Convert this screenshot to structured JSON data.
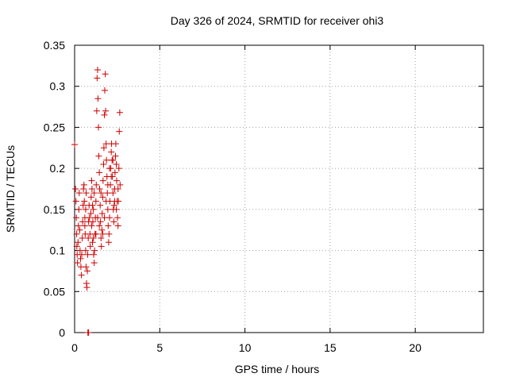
{
  "chart_data": {
    "type": "scatter",
    "title": "Day 326 of 2024, SRMTID for receiver ohi3",
    "xlabel": "GPS time / hours",
    "ylabel": "SRMTID / TECUs",
    "xlim": [
      0,
      24
    ],
    "ylim": [
      0,
      0.35
    ],
    "x_ticks": [
      0,
      5,
      10,
      15,
      20
    ],
    "y_ticks": [
      0,
      0.05,
      0.1,
      0.15,
      0.2,
      0.25,
      0.3,
      0.35
    ],
    "x_tick_labels": [
      "0",
      "5",
      "10",
      "15",
      "20"
    ],
    "y_tick_labels": [
      "0",
      "0.05",
      "0.1",
      "0.15",
      "0.2",
      "0.25",
      "0.3",
      "0.35"
    ],
    "grid": true,
    "marker": "plus",
    "color": "#cc0000",
    "series": [
      {
        "points": [
          [
            0.0,
            0.229
          ],
          [
            0.05,
            0.175
          ],
          [
            0.08,
            0.16
          ],
          [
            0.1,
            0.14
          ],
          [
            0.12,
            0.12
          ],
          [
            0.13,
            0.105
          ],
          [
            0.15,
            0.095
          ],
          [
            0.17,
            0.085
          ],
          [
            0.2,
            0.11
          ],
          [
            0.22,
            0.13
          ],
          [
            0.25,
            0.15
          ],
          [
            0.27,
            0.17
          ],
          [
            0.3,
            0.125
          ],
          [
            0.32,
            0.1
          ],
          [
            0.35,
            0.09
          ],
          [
            0.37,
            0.08
          ],
          [
            0.4,
            0.07
          ],
          [
            0.42,
            0.095
          ],
          [
            0.45,
            0.115
          ],
          [
            0.47,
            0.135
          ],
          [
            0.5,
            0.155
          ],
          [
            0.52,
            0.175
          ],
          [
            0.55,
            0.18
          ],
          [
            0.57,
            0.16
          ],
          [
            0.6,
            0.14
          ],
          [
            0.62,
            0.12
          ],
          [
            0.65,
            0.1
          ],
          [
            0.67,
            0.08
          ],
          [
            0.7,
            0.06
          ],
          [
            0.72,
            0.055
          ],
          [
            0.75,
            0.075
          ],
          [
            0.77,
            0.095
          ],
          [
            0.8,
            0.115
          ],
          [
            0.82,
            0.135
          ],
          [
            0.85,
            0.155
          ],
          [
            0.87,
            0.14
          ],
          [
            0.9,
            0.12
          ],
          [
            0.92,
            0.105
          ],
          [
            0.95,
            0.145
          ],
          [
            0.97,
            0.165
          ],
          [
            1.0,
            0.185
          ],
          [
            1.02,
            0.175
          ],
          [
            1.05,
            0.155
          ],
          [
            1.07,
            0.135
          ],
          [
            1.1,
            0.115
          ],
          [
            1.12,
            0.095
          ],
          [
            1.15,
            0.085
          ],
          [
            1.17,
            0.1
          ],
          [
            1.2,
            0.12
          ],
          [
            1.22,
            0.14
          ],
          [
            1.25,
            0.16
          ],
          [
            1.27,
            0.18
          ],
          [
            1.3,
            0.27
          ],
          [
            1.32,
            0.31
          ],
          [
            1.35,
            0.32
          ],
          [
            1.37,
            0.285
          ],
          [
            1.4,
            0.25
          ],
          [
            1.42,
            0.215
          ],
          [
            1.45,
            0.195
          ],
          [
            1.47,
            0.175
          ],
          [
            1.5,
            0.155
          ],
          [
            1.52,
            0.135
          ],
          [
            1.55,
            0.115
          ],
          [
            1.57,
            0.105
          ],
          [
            1.6,
            0.125
          ],
          [
            1.62,
            0.145
          ],
          [
            1.65,
            0.165
          ],
          [
            1.67,
            0.185
          ],
          [
            1.7,
            0.205
          ],
          [
            1.72,
            0.225
          ],
          [
            1.75,
            0.265
          ],
          [
            1.77,
            0.295
          ],
          [
            1.8,
            0.315
          ],
          [
            1.82,
            0.27
          ],
          [
            1.85,
            0.23
          ],
          [
            1.87,
            0.21
          ],
          [
            1.9,
            0.19
          ],
          [
            1.92,
            0.17
          ],
          [
            1.95,
            0.15
          ],
          [
            1.97,
            0.13
          ],
          [
            2.0,
            0.11
          ],
          [
            2.02,
            0.12
          ],
          [
            2.05,
            0.14
          ],
          [
            2.07,
            0.16
          ],
          [
            2.1,
            0.18
          ],
          [
            2.12,
            0.2
          ],
          [
            2.15,
            0.22
          ],
          [
            2.17,
            0.23
          ],
          [
            2.2,
            0.21
          ],
          [
            2.22,
            0.19
          ],
          [
            2.25,
            0.17
          ],
          [
            2.27,
            0.15
          ],
          [
            2.3,
            0.135
          ],
          [
            2.32,
            0.155
          ],
          [
            2.35,
            0.175
          ],
          [
            2.37,
            0.195
          ],
          [
            2.4,
            0.215
          ],
          [
            2.42,
            0.23
          ],
          [
            2.45,
            0.205
          ],
          [
            2.47,
            0.185
          ],
          [
            2.5,
            0.16
          ],
          [
            2.52,
            0.14
          ],
          [
            2.55,
            0.13
          ],
          [
            2.57,
            0.16
          ],
          [
            2.6,
            0.2
          ],
          [
            2.62,
            0.245
          ],
          [
            2.65,
            0.268
          ],
          [
            2.67,
            0.18
          ],
          [
            0.78,
            0.0
          ],
          [
            0.82,
            0.0
          ],
          [
            0.6,
            0.13
          ],
          [
            0.65,
            0.15
          ],
          [
            0.68,
            0.17
          ],
          [
            1.0,
            0.13
          ],
          [
            1.05,
            0.11
          ],
          [
            1.1,
            0.15
          ],
          [
            1.15,
            0.17
          ],
          [
            1.25,
            0.12
          ],
          [
            1.35,
            0.14
          ],
          [
            1.45,
            0.13
          ],
          [
            1.55,
            0.17
          ],
          [
            1.65,
            0.12
          ],
          [
            1.75,
            0.14
          ],
          [
            1.85,
            0.16
          ],
          [
            1.95,
            0.18
          ],
          [
            2.05,
            0.2
          ],
          [
            2.15,
            0.19
          ],
          [
            2.25,
            0.21
          ],
          [
            2.35,
            0.16
          ],
          [
            2.45,
            0.15
          ],
          [
            2.55,
            0.175
          ]
        ]
      }
    ]
  }
}
